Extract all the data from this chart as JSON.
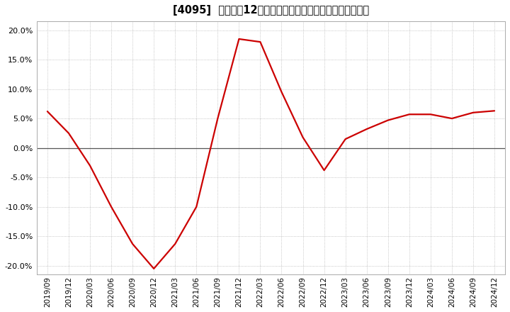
{
  "title": "[4095]  売上高の12か月移動合計の対前年同期増減率の推移",
  "line_color": "#cc0000",
  "background_color": "#ffffff",
  "plot_bg_color": "#ffffff",
  "grid_color": "#999999",
  "zero_line_color": "#555555",
  "ylim": [
    -0.215,
    0.215
  ],
  "yticks": [
    -0.2,
    -0.15,
    -0.1,
    -0.05,
    0.0,
    0.05,
    0.1,
    0.15,
    0.2
  ],
  "dates": [
    "2019/09",
    "2019/12",
    "2020/03",
    "2020/06",
    "2020/09",
    "2020/12",
    "2021/03",
    "2021/06",
    "2021/09",
    "2021/12",
    "2022/03",
    "2022/06",
    "2022/09",
    "2022/12",
    "2023/03",
    "2023/06",
    "2023/09",
    "2023/12",
    "2024/03",
    "2024/06",
    "2024/09",
    "2024/12"
  ],
  "values": [
    0.062,
    0.025,
    -0.03,
    -0.1,
    -0.163,
    -0.205,
    -0.163,
    -0.1,
    0.05,
    0.185,
    0.18,
    0.095,
    0.018,
    -0.038,
    0.015,
    0.032,
    0.047,
    0.057,
    0.057,
    0.05,
    0.06,
    0.063
  ],
  "title_fontsize": 10.5,
  "tick_fontsize": 8,
  "line_width": 1.6
}
